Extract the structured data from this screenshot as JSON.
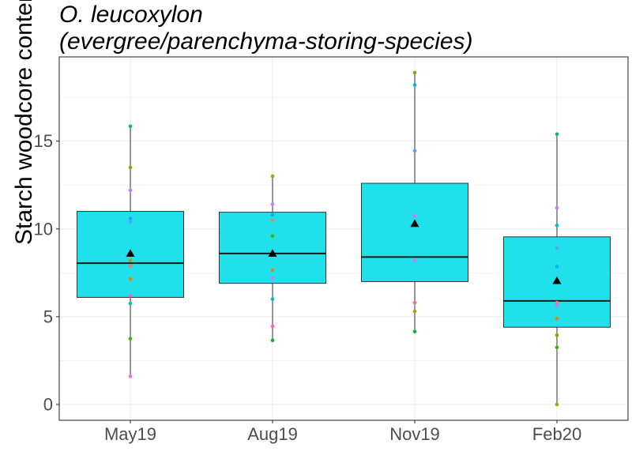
{
  "chart_data": {
    "type": "box",
    "title_line1": "O. leucoxylon",
    "title_line2": "(evergree/parenchyma-storing-species)",
    "xlabel": "",
    "ylabel": "Starch woodcore content (mg)",
    "ylim": [
      -0.9,
      19.8
    ],
    "yticks": [
      0,
      5,
      10,
      15
    ],
    "grid": true,
    "categories": [
      "May19",
      "Aug19",
      "Nov19",
      "Feb20"
    ],
    "boxes": [
      {
        "min": 1.6,
        "q1": 6.1,
        "median": 8.05,
        "q3": 11.0,
        "max": 15.85,
        "mean": 8.6
      },
      {
        "min": 3.7,
        "q1": 6.9,
        "median": 8.6,
        "q3": 10.95,
        "max": 13.0,
        "mean": 8.6
      },
      {
        "min": 4.15,
        "q1": 7.0,
        "median": 8.4,
        "q3": 12.6,
        "max": 18.9,
        "mean": 10.3
      },
      {
        "min": 0.0,
        "q1": 4.4,
        "median": 5.9,
        "q3": 9.55,
        "max": 15.4,
        "mean": 7.05
      }
    ],
    "points": [
      {
        "x": "May19",
        "y": 15.85,
        "color": "#00BF7D"
      },
      {
        "x": "May19",
        "y": 13.5,
        "color": "#7CAE00"
      },
      {
        "x": "May19",
        "y": 12.2,
        "color": "#C77CFF"
      },
      {
        "x": "May19",
        "y": 10.6,
        "color": "#00B0F6"
      },
      {
        "x": "May19",
        "y": 10.4,
        "color": "#619CFF"
      },
      {
        "x": "May19",
        "y": 8.2,
        "color": "#A3A500"
      },
      {
        "x": "May19",
        "y": 7.9,
        "color": "#F8766D"
      },
      {
        "x": "May19",
        "y": 7.15,
        "color": "#E58700"
      },
      {
        "x": "May19",
        "y": 6.2,
        "color": "#FF61C3"
      },
      {
        "x": "May19",
        "y": 5.75,
        "color": "#00BFC4"
      },
      {
        "x": "May19",
        "y": 3.75,
        "color": "#39B600"
      },
      {
        "x": "May19",
        "y": 1.6,
        "color": "#E76BF3"
      },
      {
        "x": "Aug19",
        "y": 13.0,
        "color": "#A3A500"
      },
      {
        "x": "Aug19",
        "y": 11.4,
        "color": "#C77CFF"
      },
      {
        "x": "Aug19",
        "y": 10.8,
        "color": "#00B0F6"
      },
      {
        "x": "Aug19",
        "y": 10.5,
        "color": "#F8766D"
      },
      {
        "x": "Aug19",
        "y": 9.6,
        "color": "#39B600"
      },
      {
        "x": "Aug19",
        "y": 7.65,
        "color": "#E58700"
      },
      {
        "x": "Aug19",
        "y": 7.2,
        "color": "#E76BF3"
      },
      {
        "x": "Aug19",
        "y": 6.0,
        "color": "#00BFC4"
      },
      {
        "x": "Aug19",
        "y": 4.45,
        "color": "#FF61C3"
      },
      {
        "x": "Aug19",
        "y": 3.65,
        "color": "#00BA38"
      },
      {
        "x": "Nov19",
        "y": 18.9,
        "color": "#7CAE00"
      },
      {
        "x": "Nov19",
        "y": 18.2,
        "color": "#00B0F6"
      },
      {
        "x": "Nov19",
        "y": 14.45,
        "color": "#619CFF"
      },
      {
        "x": "Nov19",
        "y": 10.75,
        "color": "#E76BF3"
      },
      {
        "x": "Nov19",
        "y": 8.2,
        "color": "#C77CFF"
      },
      {
        "x": "Nov19",
        "y": 5.8,
        "color": "#FF61C3"
      },
      {
        "x": "Nov19",
        "y": 5.3,
        "color": "#A3A500"
      },
      {
        "x": "Nov19",
        "y": 4.15,
        "color": "#00BA38"
      },
      {
        "x": "Feb20",
        "y": 15.4,
        "color": "#00BF7D"
      },
      {
        "x": "Feb20",
        "y": 11.2,
        "color": "#C77CFF"
      },
      {
        "x": "Feb20",
        "y": 10.2,
        "color": "#00BFC4"
      },
      {
        "x": "Feb20",
        "y": 8.9,
        "color": "#619CFF"
      },
      {
        "x": "Feb20",
        "y": 7.85,
        "color": "#00B0F6"
      },
      {
        "x": "Feb20",
        "y": 5.8,
        "color": "#F8766D"
      },
      {
        "x": "Feb20",
        "y": 5.65,
        "color": "#E76BF3"
      },
      {
        "x": "Feb20",
        "y": 4.9,
        "color": "#E58700"
      },
      {
        "x": "Feb20",
        "y": 3.95,
        "color": "#7CAE00"
      },
      {
        "x": "Feb20",
        "y": 3.25,
        "color": "#39B600"
      },
      {
        "x": "Feb20",
        "y": 0.0,
        "color": "#A3A500"
      }
    ],
    "box_fill": "#1FE0EB",
    "mean_marker": "triangle"
  }
}
